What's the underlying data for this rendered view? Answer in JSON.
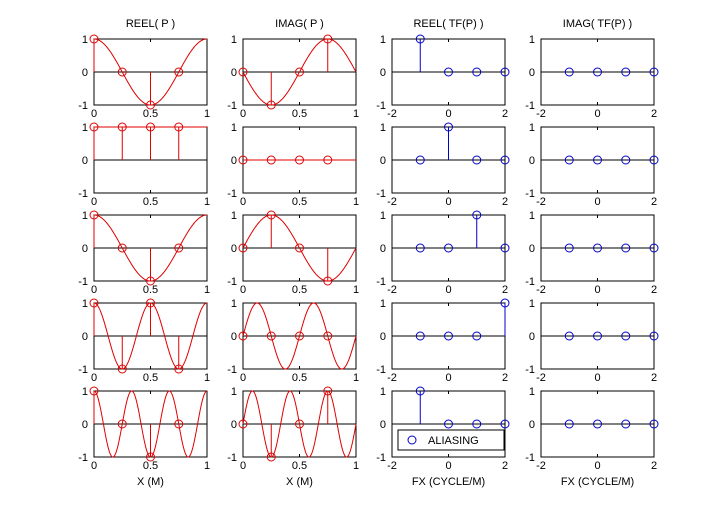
{
  "figure": {
    "column_titles": [
      "REEL( P )",
      "IMAG( P )",
      "REEL( TF(P) )",
      "IMAG( TF(P) )"
    ],
    "x_labels": [
      "X (M)",
      "X (M)",
      "FX (CYCLE/M)",
      "FX (CYCLE/M)"
    ],
    "legend_label": "ALIASING"
  },
  "colors": {
    "signal": "#e00000",
    "spectrum": "#0000cc",
    "axis": "#000000",
    "background": "#ffffff"
  },
  "chart_data": [
    {
      "type": "line",
      "panel": "row1-real",
      "title": "REEL( P )",
      "xlabel": "",
      "ylabel": "",
      "xlim": [
        0,
        1
      ],
      "ylim": [
        -1,
        1
      ],
      "xticks": [
        0,
        0.5,
        1
      ],
      "yticks": [
        -1,
        0,
        1
      ],
      "series": [
        {
          "kind": "curve",
          "fn": "cos",
          "k": 1
        },
        {
          "kind": "stem",
          "x": [
            0,
            0.25,
            0.5,
            0.75
          ],
          "values": [
            1,
            0,
            -1,
            0
          ]
        }
      ]
    },
    {
      "type": "line",
      "panel": "row1-imag",
      "title": "IMAG( P )",
      "xlabel": "",
      "ylabel": "",
      "xlim": [
        0,
        1
      ],
      "ylim": [
        -1,
        1
      ],
      "xticks": [
        0,
        0.5,
        1
      ],
      "yticks": [
        -1,
        0,
        1
      ],
      "series": [
        {
          "kind": "curve",
          "fn": "-sin",
          "k": 1
        },
        {
          "kind": "stem",
          "x": [
            0,
            0.25,
            0.5,
            0.75
          ],
          "values": [
            0,
            -1,
            0,
            1
          ]
        }
      ]
    },
    {
      "type": "scatter",
      "panel": "row1-tf-real",
      "title": "REEL( TF(P) )",
      "xlabel": "",
      "ylabel": "",
      "xlim": [
        -2,
        2
      ],
      "ylim": [
        -1,
        1
      ],
      "xticks": [
        -2,
        0,
        2
      ],
      "yticks": [
        -1,
        0,
        1
      ],
      "series": [
        {
          "kind": "stem",
          "x": [
            -1,
            0,
            1,
            2
          ],
          "values": [
            1,
            0,
            0,
            0
          ]
        }
      ]
    },
    {
      "type": "scatter",
      "panel": "row1-tf-imag",
      "title": "IMAG( TF(P) )",
      "xlabel": "",
      "ylabel": "",
      "xlim": [
        -2,
        2
      ],
      "ylim": [
        -1,
        1
      ],
      "xticks": [
        -2,
        0,
        2
      ],
      "yticks": [
        -1,
        0,
        1
      ],
      "series": [
        {
          "kind": "stem",
          "x": [
            -1,
            0,
            1,
            2
          ],
          "values": [
            0,
            0,
            0,
            0
          ]
        }
      ]
    },
    {
      "type": "line",
      "panel": "row2-real",
      "title": "",
      "xlabel": "",
      "ylabel": "",
      "xlim": [
        0,
        1
      ],
      "ylim": [
        -1,
        1
      ],
      "xticks": [
        0,
        0.5,
        1
      ],
      "yticks": [
        -1,
        0,
        1
      ],
      "series": [
        {
          "kind": "curve",
          "fn": "cos",
          "k": 0
        },
        {
          "kind": "stem",
          "x": [
            0,
            0.25,
            0.5,
            0.75
          ],
          "values": [
            1,
            1,
            1,
            1
          ]
        }
      ]
    },
    {
      "type": "line",
      "panel": "row2-imag",
      "title": "",
      "xlabel": "",
      "ylabel": "",
      "xlim": [
        0,
        1
      ],
      "ylim": [
        -1,
        1
      ],
      "xticks": [
        0,
        0.5,
        1
      ],
      "yticks": [
        -1,
        0,
        1
      ],
      "series": [
        {
          "kind": "curve",
          "fn": "-sin",
          "k": 0
        },
        {
          "kind": "stem",
          "x": [
            0,
            0.25,
            0.5,
            0.75
          ],
          "values": [
            0,
            0,
            0,
            0
          ]
        }
      ]
    },
    {
      "type": "scatter",
      "panel": "row2-tf-real",
      "title": "",
      "xlabel": "",
      "ylabel": "",
      "xlim": [
        -2,
        2
      ],
      "ylim": [
        -1,
        1
      ],
      "xticks": [
        -2,
        0,
        2
      ],
      "yticks": [
        -1,
        0,
        1
      ],
      "series": [
        {
          "kind": "stem",
          "x": [
            -1,
            0,
            1,
            2
          ],
          "values": [
            0,
            1,
            0,
            0
          ]
        }
      ]
    },
    {
      "type": "scatter",
      "panel": "row2-tf-imag",
      "title": "",
      "xlabel": "",
      "ylabel": "",
      "xlim": [
        -2,
        2
      ],
      "ylim": [
        -1,
        1
      ],
      "xticks": [
        -2,
        0,
        2
      ],
      "yticks": [
        -1,
        0,
        1
      ],
      "series": [
        {
          "kind": "stem",
          "x": [
            -1,
            0,
            1,
            2
          ],
          "values": [
            0,
            0,
            0,
            0
          ]
        }
      ]
    },
    {
      "type": "line",
      "panel": "row3-real",
      "title": "",
      "xlabel": "",
      "ylabel": "",
      "xlim": [
        0,
        1
      ],
      "ylim": [
        -1,
        1
      ],
      "xticks": [
        0,
        0.5,
        1
      ],
      "yticks": [
        -1,
        0,
        1
      ],
      "series": [
        {
          "kind": "curve",
          "fn": "cos",
          "k": 1
        },
        {
          "kind": "stem",
          "x": [
            0,
            0.25,
            0.5,
            0.75
          ],
          "values": [
            1,
            0,
            -1,
            0
          ]
        }
      ]
    },
    {
      "type": "line",
      "panel": "row3-imag",
      "title": "",
      "xlabel": "",
      "ylabel": "",
      "xlim": [
        0,
        1
      ],
      "ylim": [
        -1,
        1
      ],
      "xticks": [
        0,
        0.5,
        1
      ],
      "yticks": [
        -1,
        0,
        1
      ],
      "series": [
        {
          "kind": "curve",
          "fn": "sin",
          "k": 1
        },
        {
          "kind": "stem",
          "x": [
            0,
            0.25,
            0.5,
            0.75
          ],
          "values": [
            0,
            1,
            0,
            -1
          ]
        }
      ]
    },
    {
      "type": "scatter",
      "panel": "row3-tf-real",
      "title": "",
      "xlabel": "",
      "ylabel": "",
      "xlim": [
        -2,
        2
      ],
      "ylim": [
        -1,
        1
      ],
      "xticks": [
        -2,
        0,
        2
      ],
      "yticks": [
        -1,
        0,
        1
      ],
      "series": [
        {
          "kind": "stem",
          "x": [
            -1,
            0,
            1,
            2
          ],
          "values": [
            0,
            0,
            1,
            0
          ]
        }
      ]
    },
    {
      "type": "scatter",
      "panel": "row3-tf-imag",
      "title": "",
      "xlabel": "",
      "ylabel": "",
      "xlim": [
        -2,
        2
      ],
      "ylim": [
        -1,
        1
      ],
      "xticks": [
        -2,
        0,
        2
      ],
      "yticks": [
        -1,
        0,
        1
      ],
      "series": [
        {
          "kind": "stem",
          "x": [
            -1,
            0,
            1,
            2
          ],
          "values": [
            0,
            0,
            0,
            0
          ]
        }
      ]
    },
    {
      "type": "line",
      "panel": "row4-real",
      "title": "",
      "xlabel": "",
      "ylabel": "",
      "xlim": [
        0,
        1
      ],
      "ylim": [
        -1,
        1
      ],
      "xticks": [
        0,
        0.5,
        1
      ],
      "yticks": [
        -1,
        0,
        1
      ],
      "series": [
        {
          "kind": "curve",
          "fn": "cos",
          "k": 2
        },
        {
          "kind": "stem",
          "x": [
            0,
            0.25,
            0.5,
            0.75
          ],
          "values": [
            1,
            -1,
            1,
            -1
          ]
        }
      ]
    },
    {
      "type": "line",
      "panel": "row4-imag",
      "title": "",
      "xlabel": "",
      "ylabel": "",
      "xlim": [
        0,
        1
      ],
      "ylim": [
        -1,
        1
      ],
      "xticks": [
        0,
        0.5,
        1
      ],
      "yticks": [
        -1,
        0,
        1
      ],
      "series": [
        {
          "kind": "curve",
          "fn": "sin",
          "k": 2
        },
        {
          "kind": "stem",
          "x": [
            0,
            0.25,
            0.5,
            0.75
          ],
          "values": [
            0,
            0,
            0,
            0
          ]
        }
      ]
    },
    {
      "type": "scatter",
      "panel": "row4-tf-real",
      "title": "",
      "xlabel": "",
      "ylabel": "",
      "xlim": [
        -2,
        2
      ],
      "ylim": [
        -1,
        1
      ],
      "xticks": [
        -2,
        0,
        2
      ],
      "yticks": [
        -1,
        0,
        1
      ],
      "series": [
        {
          "kind": "stem",
          "x": [
            -1,
            0,
            1,
            2
          ],
          "values": [
            0,
            0,
            0,
            1
          ]
        }
      ]
    },
    {
      "type": "scatter",
      "panel": "row4-tf-imag",
      "title": "",
      "xlabel": "",
      "ylabel": "",
      "xlim": [
        -2,
        2
      ],
      "ylim": [
        -1,
        1
      ],
      "xticks": [
        -2,
        0,
        2
      ],
      "yticks": [
        -1,
        0,
        1
      ],
      "series": [
        {
          "kind": "stem",
          "x": [
            -1,
            0,
            1,
            2
          ],
          "values": [
            0,
            0,
            0,
            0
          ]
        }
      ]
    },
    {
      "type": "line",
      "panel": "row5-real",
      "title": "",
      "xlabel": "X (M)",
      "ylabel": "",
      "xlim": [
        0,
        1
      ],
      "ylim": [
        -1,
        1
      ],
      "xticks": [
        0,
        0.5,
        1
      ],
      "yticks": [
        -1,
        0,
        1
      ],
      "series": [
        {
          "kind": "curve",
          "fn": "cos",
          "k": 3
        },
        {
          "kind": "stem",
          "x": [
            0,
            0.25,
            0.5,
            0.75
          ],
          "values": [
            1,
            0,
            -1,
            0
          ]
        }
      ]
    },
    {
      "type": "line",
      "panel": "row5-imag",
      "title": "",
      "xlabel": "X (M)",
      "ylabel": "",
      "xlim": [
        0,
        1
      ],
      "ylim": [
        -1,
        1
      ],
      "xticks": [
        0,
        0.5,
        1
      ],
      "yticks": [
        -1,
        0,
        1
      ],
      "series": [
        {
          "kind": "curve",
          "fn": "sin",
          "k": 3
        },
        {
          "kind": "stem",
          "x": [
            0,
            0.25,
            0.5,
            0.75
          ],
          "values": [
            0,
            -1,
            0,
            1
          ]
        }
      ]
    },
    {
      "type": "scatter",
      "panel": "row5-tf-real",
      "title": "",
      "xlabel": "FX (CYCLE/M)",
      "ylabel": "",
      "xlim": [
        -2,
        2
      ],
      "ylim": [
        -1,
        1
      ],
      "xticks": [
        -2,
        0,
        2
      ],
      "yticks": [
        -1,
        0,
        1
      ],
      "legend": "ALIASING",
      "series": [
        {
          "kind": "stem",
          "x": [
            -1,
            0,
            1,
            2
          ],
          "values": [
            1,
            0,
            0,
            0
          ]
        }
      ]
    },
    {
      "type": "scatter",
      "panel": "row5-tf-imag",
      "title": "",
      "xlabel": "FX (CYCLE/M)",
      "ylabel": "",
      "xlim": [
        -2,
        2
      ],
      "ylim": [
        -1,
        1
      ],
      "xticks": [
        -2,
        0,
        2
      ],
      "yticks": [
        -1,
        0,
        1
      ],
      "series": [
        {
          "kind": "stem",
          "x": [
            -1,
            0,
            1,
            2
          ],
          "values": [
            0,
            0,
            0,
            0
          ]
        }
      ]
    }
  ]
}
